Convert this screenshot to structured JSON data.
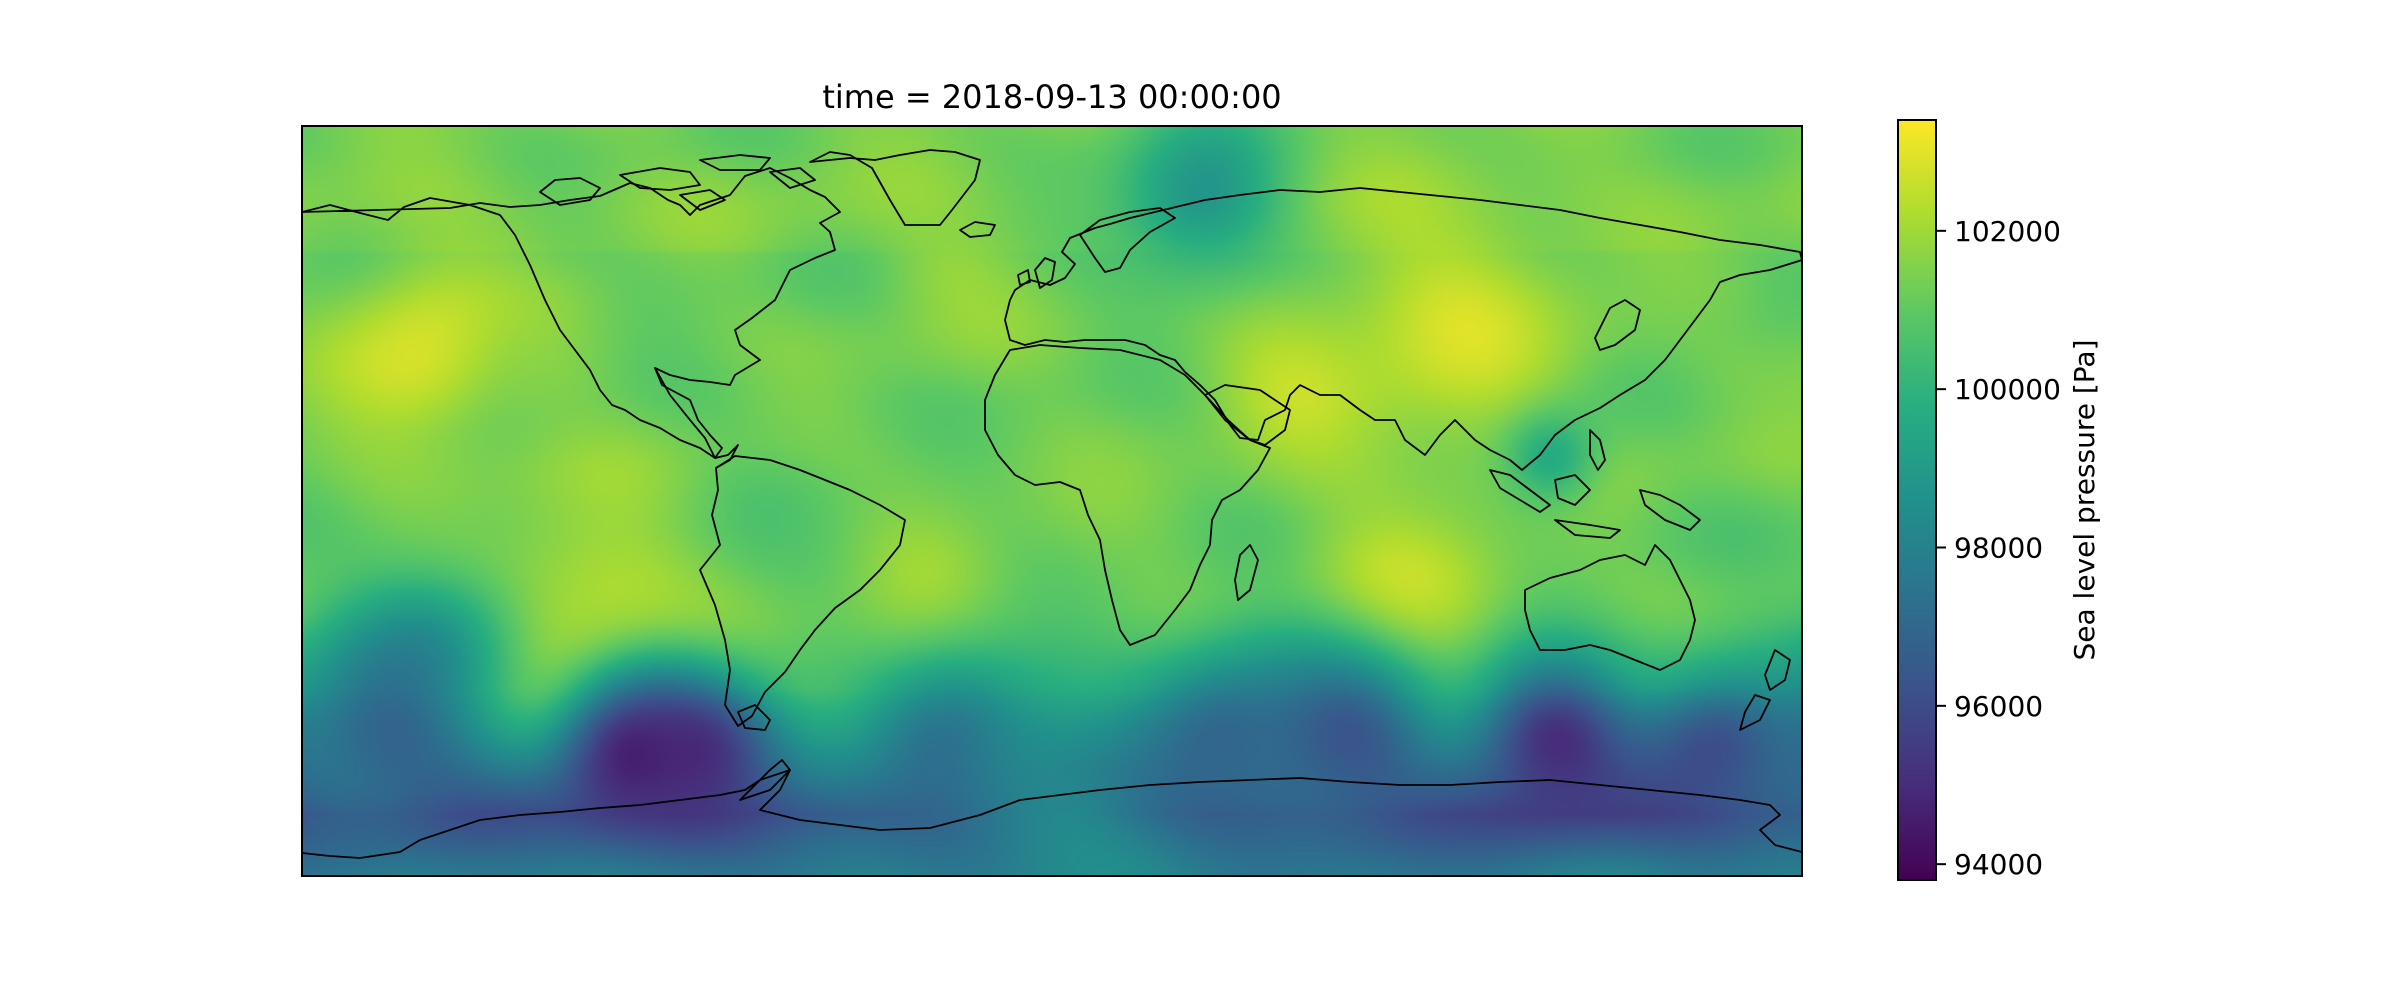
{
  "figure": {
    "title": "time = 2018-09-13 00:00:00"
  },
  "map": {
    "projection": "PlateCarree",
    "extent_lon": [
      -180,
      180
    ],
    "extent_lat": [
      -90,
      90
    ],
    "variable": "Sea level pressure",
    "field_colormap": "viridis",
    "frame_color": "#000000",
    "coastline_color": "#000000",
    "pressure_features": [
      {
        "lon": -150,
        "lat": 35,
        "value": 103000,
        "spread": 16
      },
      {
        "lon": -110,
        "lat": -30,
        "value": 102800,
        "spread": 20
      },
      {
        "lon": -30,
        "lat": -30,
        "value": 102600,
        "spread": 18
      },
      {
        "lon": 85,
        "lat": -28,
        "value": 102700,
        "spread": 18
      },
      {
        "lon": 95,
        "lat": 40,
        "value": 102600,
        "spread": 22
      },
      {
        "lon": 60,
        "lat": 30,
        "value": 102400,
        "spread": 16
      },
      {
        "lon": -25,
        "lat": 55,
        "value": 101700,
        "spread": 14
      },
      {
        "lon": 165,
        "lat": 45,
        "value": 101200,
        "spread": 12
      },
      {
        "lon": 35,
        "lat": 72,
        "value": 98700,
        "spread": 14
      },
      {
        "lon": -150,
        "lat": -35,
        "value": 99000,
        "spread": 14
      },
      {
        "lon": 120,
        "lat": 10,
        "value": 99400,
        "spread": 8
      },
      {
        "lon": -120,
        "lat": 40,
        "value": 101500,
        "spread": 14
      },
      {
        "lon": -100,
        "lat": -62,
        "value": 94500,
        "spread": 14
      },
      {
        "lon": -85,
        "lat": -60,
        "value": 95200,
        "spread": 14
      },
      {
        "lon": 120,
        "lat": -58,
        "value": 94800,
        "spread": 14
      },
      {
        "lon": 160,
        "lat": -60,
        "value": 96000,
        "spread": 14
      },
      {
        "lon": 40,
        "lat": -55,
        "value": 96800,
        "spread": 16
      },
      {
        "lon": -20,
        "lat": -60,
        "value": 96600,
        "spread": 18
      },
      {
        "lon": 70,
        "lat": -60,
        "value": 96400,
        "spread": 18
      },
      {
        "lon": -160,
        "lat": -60,
        "value": 96800,
        "spread": 18
      },
      {
        "lon": 0,
        "lat": -80,
        "value": 98200,
        "spread": 22
      },
      {
        "lon": 10,
        "lat": 0,
        "value": 101300,
        "spread": 25
      },
      {
        "lon": -60,
        "lat": -10,
        "value": 101000,
        "spread": 18
      }
    ]
  },
  "colorbar": {
    "label": "Sea level pressure [Pa]",
    "vmin": 93800,
    "vmax": 103400,
    "ticks": [
      94000,
      96000,
      98000,
      100000,
      102000
    ],
    "tick_labels": [
      "94000",
      "96000",
      "98000",
      "100000",
      "102000"
    ]
  }
}
